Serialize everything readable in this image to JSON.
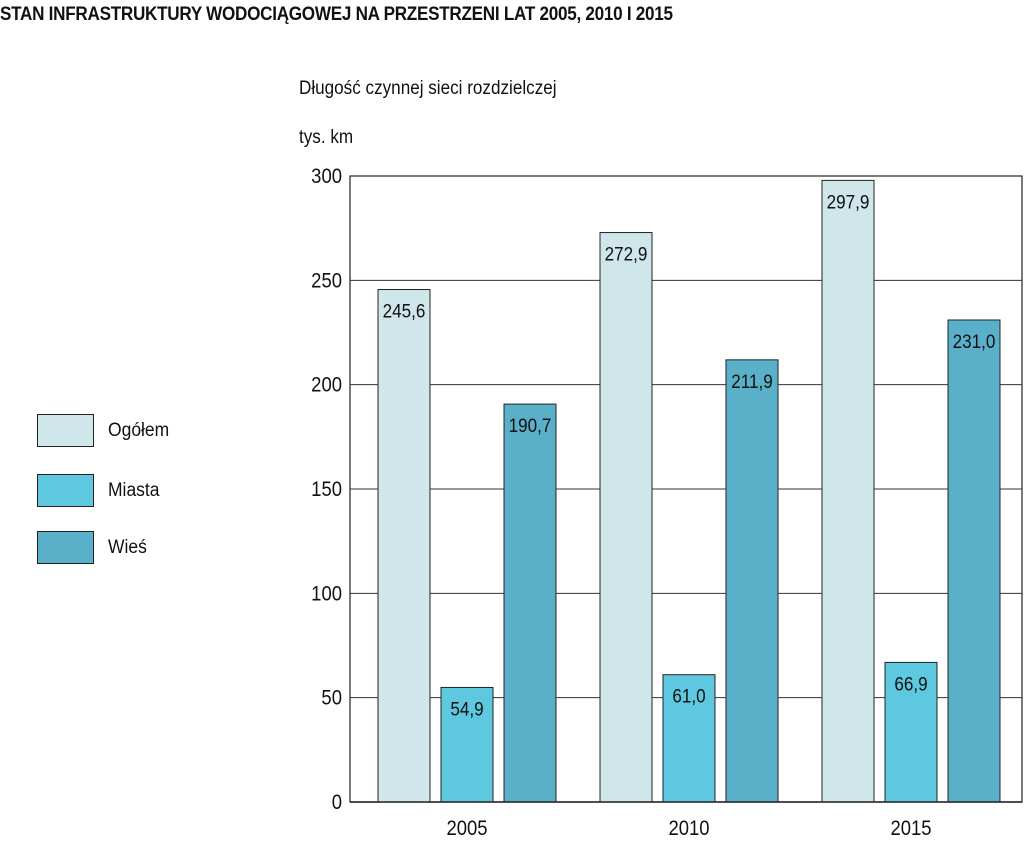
{
  "title": "STAN INFRASTRUKTURY WODOCIĄGOWEJ NA PRZESTRZENI LAT 2005, 2010 I 2015",
  "chart_data": {
    "type": "bar",
    "title": "STAN INFRASTRUKTURY WODOCIĄGOWEJ NA PRZESTRZENI LAT 2005, 2010 I 2015",
    "subtitle": "Długość czynnej sieci rozdzielczej",
    "ylabel": "tys. km",
    "xlabel": "",
    "categories": [
      "2005",
      "2010",
      "2015"
    ],
    "series": [
      {
        "name": "Ogółem",
        "color": "#cfe6ea",
        "values": [
          245.6,
          272.9,
          297.9
        ],
        "labels": [
          "245,6",
          "272,9",
          "297,9"
        ]
      },
      {
        "name": "Miasta",
        "color": "#5ec8e0",
        "values": [
          54.9,
          61.0,
          66.9
        ],
        "labels": [
          "54,9",
          "61,0",
          "66,9"
        ]
      },
      {
        "name": "Wieś",
        "color": "#5ab0c8",
        "values": [
          190.7,
          211.9,
          231.0
        ],
        "labels": [
          "190,7",
          "211,9",
          "231,0"
        ]
      }
    ],
    "ylim": [
      0,
      300
    ],
    "yticks": [
      "0",
      "50",
      "100",
      "150",
      "200",
      "250",
      "300"
    ],
    "grid": true,
    "legend_position": "left"
  }
}
